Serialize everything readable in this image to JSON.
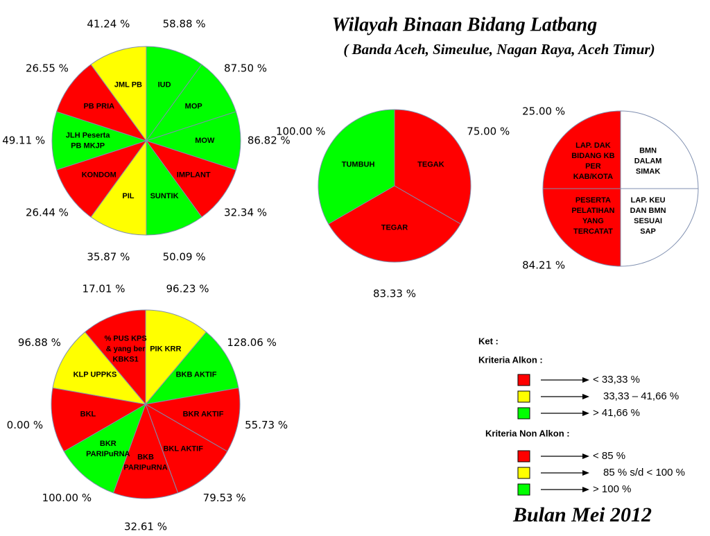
{
  "title": "Wilayah Binaan Bidang Latbang",
  "subtitle": "( Banda Aceh, Simeulue, Nagan Raya, Aceh Timur)",
  "pies": [
    {
      "slices": [
        {
          "label": [
            "IUD"
          ],
          "color": "#00ff00",
          "value_label": "58.88 %"
        },
        {
          "label": [
            "MOP"
          ],
          "color": "#00ff00",
          "value_label": "87.50 %"
        },
        {
          "label": [
            "MOW"
          ],
          "color": "#00ff00",
          "value_label": "86.82 %"
        },
        {
          "label": [
            "IMPLANT"
          ],
          "color": "#ff0000",
          "value_label": "32.34 %"
        },
        {
          "label": [
            "SUNTIK"
          ],
          "color": "#00ff00",
          "value_label": "50.09 %"
        },
        {
          "label": [
            "PIL"
          ],
          "color": "#ffff00",
          "value_label": "35.87 %"
        },
        {
          "label": [
            "KONDOM"
          ],
          "color": "#ff0000",
          "value_label": "26.44 %"
        },
        {
          "label": [
            "JLH Peserta",
            "PB MKJP"
          ],
          "color": "#00ff00",
          "value_label": "49.11 %"
        },
        {
          "label": [
            "PB PRIA"
          ],
          "color": "#ff0000",
          "value_label": "26.55 %"
        },
        {
          "label": [
            "JML PB"
          ],
          "color": "#ffff00",
          "value_label": "41.24 %"
        }
      ]
    },
    {
      "slices": [
        {
          "label": [
            "TEGAK"
          ],
          "color": "#ff0000",
          "value_label": "75.00 %"
        },
        {
          "label": [
            "TEGAR"
          ],
          "color": "#ff0000",
          "value_label": "83.33 %"
        },
        {
          "label": [
            "TUMBUH"
          ],
          "color": "#00ff00",
          "value_label": "100.00 %"
        }
      ]
    },
    {
      "slices": [
        {
          "label": [
            "BMN",
            "DALAM",
            "SIMAK"
          ],
          "color": "#ffffff"
        },
        {
          "label": [
            "LAP. KEU",
            "DAN BMN",
            "SESUAI",
            "SAP"
          ],
          "color": "#ffffff"
        },
        {
          "label": [
            "PESERTA",
            "PELATIHAN",
            "YANG",
            "TERCATAT"
          ],
          "color": "#ff0000",
          "value_label": "84.21 %"
        },
        {
          "label": [
            "LAP. DAK",
            "BIDANG KB",
            "PER",
            "KAB/KOTA"
          ],
          "color": "#ff0000",
          "value_label": "25.00 %"
        }
      ]
    },
    {
      "slices": [
        {
          "label": [
            "PIK KRR"
          ],
          "color": "#ffff00",
          "value_label": "96.23 %"
        },
        {
          "label": [
            "BKB AKTIF"
          ],
          "color": "#00ff00",
          "value_label": "128.06 %"
        },
        {
          "label": [
            "BKR AKTIF"
          ],
          "color": "#ff0000",
          "value_label": "55.73 %"
        },
        {
          "label": [
            "BKL AKTIF"
          ],
          "color": "#ff0000",
          "value_label": "79.53 %"
        },
        {
          "label": [
            "BKB",
            "PARIPuRNA"
          ],
          "color": "#ff0000",
          "value_label": "32.61 %"
        },
        {
          "label": [
            "BKR",
            "PARIPuRNA"
          ],
          "color": "#00ff00",
          "value_label": "100.00 %"
        },
        {
          "label": [
            "BKL"
          ],
          "color": "#ff0000",
          "value_label": "0.00 %"
        },
        {
          "label": [
            "KLP UPPKS"
          ],
          "color": "#ffff00",
          "value_label": "96.88 %"
        },
        {
          "label": [
            "% PUS KPS",
            "& yang ber",
            "KBKS1"
          ],
          "color": "#ff0000",
          "value_label": "17.01 %"
        }
      ]
    }
  ],
  "legend": {
    "heading": "Ket :",
    "groups": [
      {
        "title": "Kriteria Alkon  :",
        "items": [
          {
            "color": "#ff0000",
            "text": "< 33,33 %"
          },
          {
            "color": "#ffff00",
            "text": "33,33 – 41,66 %"
          },
          {
            "color": "#00ff00",
            "text": ">  41,66 %"
          }
        ]
      },
      {
        "title": "Kriteria Non Alkon  :",
        "items": [
          {
            "color": "#ff0000",
            "text": "< 85 %"
          },
          {
            "color": "#ffff00",
            "text": "85 % s/d < 100 %"
          },
          {
            "color": "#00ff00",
            "text": ">  100 %"
          }
        ]
      }
    ]
  },
  "footer": "Bulan Mei 2012"
}
